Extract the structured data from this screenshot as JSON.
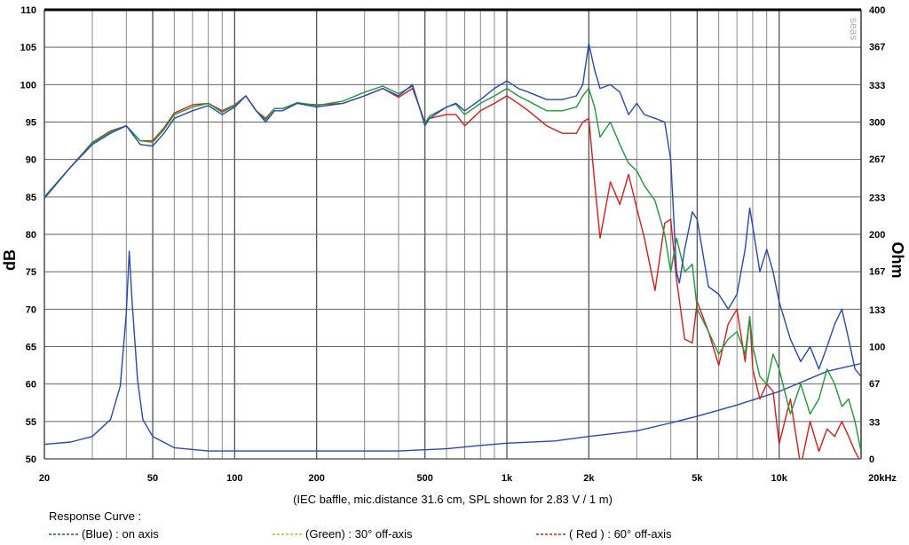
{
  "chart_data": {
    "type": "line",
    "x_scale": "log",
    "xlim": [
      20,
      20000
    ],
    "ylim": [
      50,
      110
    ],
    "y2lim": [
      0,
      400
    ],
    "grid": true,
    "ylabel": "dB",
    "y2label": "Ohm",
    "x_ticks": [
      20,
      50,
      100,
      200,
      500,
      1000,
      2000,
      5000,
      10000,
      20000
    ],
    "x_tick_labels": [
      "20",
      "50",
      "100",
      "200",
      "500",
      "1k",
      "2k",
      "5k",
      "10k",
      "20kHz"
    ],
    "y_ticks": [
      50,
      55,
      60,
      65,
      70,
      75,
      80,
      85,
      90,
      95,
      100,
      105,
      110
    ],
    "y_tick_labels": [
      "50",
      "55",
      "60",
      "65",
      "70",
      "75",
      "80",
      "85",
      "90",
      "95",
      "100",
      "105",
      "110"
    ],
    "y2_ticks": [
      0,
      33,
      67,
      100,
      133,
      167,
      200,
      233,
      267,
      300,
      333,
      367,
      400
    ],
    "y2_tick_labels": [
      "0",
      "33",
      "67",
      "100",
      "133",
      "167",
      "200",
      "233",
      "267",
      "300",
      "333",
      "367",
      "400"
    ],
    "caption": "(IEC baffle, mic.distance 31.6 cm, SPL shown for 2.83 V / 1 m)",
    "watermark": "seas",
    "legend_title": "Response Curve :",
    "legend": [
      {
        "label": "(Blue)  : on axis",
        "color": "#2a49b0"
      },
      {
        "label": "(Green) : 30° off-axis",
        "color": "#a8c830"
      },
      {
        "label": "( Red ) : 60° off-axis",
        "color": "#d02020"
      }
    ],
    "series": [
      {
        "axis": "left",
        "color": "#2a49b0",
        "points": [
          [
            20,
            84.8
          ],
          [
            25,
            89
          ],
          [
            30,
            92
          ],
          [
            35,
            93.5
          ],
          [
            40,
            94.5
          ],
          [
            45,
            92
          ],
          [
            50,
            91.8
          ],
          [
            55,
            93.5
          ],
          [
            60,
            95.5
          ],
          [
            70,
            96.5
          ],
          [
            80,
            97.2
          ],
          [
            90,
            96
          ],
          [
            100,
            97
          ],
          [
            110,
            98.5
          ],
          [
            120,
            96.5
          ],
          [
            130,
            95
          ],
          [
            140,
            96.5
          ],
          [
            150,
            96.5
          ],
          [
            170,
            97.5
          ],
          [
            200,
            97
          ],
          [
            250,
            97.5
          ],
          [
            300,
            98.5
          ],
          [
            350,
            99.5
          ],
          [
            400,
            98.5
          ],
          [
            450,
            100
          ],
          [
            500,
            94.5
          ],
          [
            520,
            95.5
          ],
          [
            600,
            97
          ],
          [
            650,
            97.5
          ],
          [
            700,
            96.5
          ],
          [
            800,
            98
          ],
          [
            900,
            99.5
          ],
          [
            1000,
            100.5
          ],
          [
            1100,
            99.5
          ],
          [
            1200,
            99
          ],
          [
            1400,
            98
          ],
          [
            1600,
            98
          ],
          [
            1800,
            98.5
          ],
          [
            1900,
            100
          ],
          [
            2000,
            105.5
          ],
          [
            2100,
            102
          ],
          [
            2200,
            99.5
          ],
          [
            2400,
            100
          ],
          [
            2600,
            99
          ],
          [
            2800,
            96
          ],
          [
            3000,
            97.5
          ],
          [
            3200,
            96
          ],
          [
            3500,
            95.5
          ],
          [
            3800,
            95
          ],
          [
            4000,
            90
          ],
          [
            4200,
            75
          ],
          [
            4300,
            73.5
          ],
          [
            4500,
            78
          ],
          [
            4800,
            83
          ],
          [
            5000,
            82
          ],
          [
            5500,
            73
          ],
          [
            6000,
            72
          ],
          [
            6500,
            70
          ],
          [
            7000,
            72
          ],
          [
            7500,
            78
          ],
          [
            7800,
            83.5
          ],
          [
            8000,
            81
          ],
          [
            8500,
            75
          ],
          [
            9000,
            78
          ],
          [
            9500,
            75
          ],
          [
            10000,
            71
          ],
          [
            11000,
            66
          ],
          [
            12000,
            63
          ],
          [
            13000,
            65
          ],
          [
            14000,
            62
          ],
          [
            15000,
            65
          ],
          [
            16000,
            68
          ],
          [
            17000,
            70
          ],
          [
            18000,
            66
          ],
          [
            19000,
            62
          ],
          [
            20000,
            61
          ]
        ]
      },
      {
        "axis": "left",
        "color": "#1e9a3a",
        "points": [
          [
            20,
            85
          ],
          [
            25,
            89
          ],
          [
            30,
            92.2
          ],
          [
            35,
            93.7
          ],
          [
            40,
            94.5
          ],
          [
            45,
            92.5
          ],
          [
            50,
            92.3
          ],
          [
            55,
            94
          ],
          [
            60,
            96
          ],
          [
            70,
            97
          ],
          [
            80,
            97.5
          ],
          [
            90,
            96.3
          ],
          [
            100,
            97.2
          ],
          [
            110,
            98.5
          ],
          [
            120,
            96.5
          ],
          [
            130,
            95.3
          ],
          [
            140,
            96.8
          ],
          [
            150,
            96.8
          ],
          [
            170,
            97.6
          ],
          [
            200,
            97.2
          ],
          [
            250,
            97.8
          ],
          [
            300,
            99
          ],
          [
            350,
            99.8
          ],
          [
            400,
            98.8
          ],
          [
            450,
            99.8
          ],
          [
            500,
            94.8
          ],
          [
            520,
            95.8
          ],
          [
            600,
            97
          ],
          [
            650,
            97.4
          ],
          [
            700,
            96
          ],
          [
            800,
            97.5
          ],
          [
            900,
            98.5
          ],
          [
            1000,
            99.5
          ],
          [
            1100,
            98.5
          ],
          [
            1200,
            97.8
          ],
          [
            1400,
            96.5
          ],
          [
            1600,
            96.5
          ],
          [
            1800,
            97
          ],
          [
            1900,
            98.5
          ],
          [
            2000,
            99.5
          ],
          [
            2100,
            97
          ],
          [
            2200,
            93
          ],
          [
            2400,
            95
          ],
          [
            2600,
            92
          ],
          [
            2800,
            89.5
          ],
          [
            3000,
            88.5
          ],
          [
            3200,
            86.5
          ],
          [
            3500,
            84.5
          ],
          [
            3800,
            80
          ],
          [
            4000,
            75
          ],
          [
            4200,
            79.5
          ],
          [
            4500,
            75
          ],
          [
            4800,
            76
          ],
          [
            5000,
            70
          ],
          [
            5500,
            67
          ],
          [
            6000,
            64
          ],
          [
            6500,
            66
          ],
          [
            7000,
            67
          ],
          [
            7500,
            64
          ],
          [
            7800,
            69
          ],
          [
            8000,
            65
          ],
          [
            8500,
            61
          ],
          [
            9000,
            60
          ],
          [
            9500,
            64
          ],
          [
            10000,
            62
          ],
          [
            11000,
            56
          ],
          [
            12000,
            60
          ],
          [
            13000,
            56
          ],
          [
            14000,
            58
          ],
          [
            15000,
            62
          ],
          [
            16000,
            60
          ],
          [
            17000,
            57
          ],
          [
            18000,
            58
          ],
          [
            19000,
            55
          ],
          [
            20000,
            51
          ]
        ]
      },
      {
        "axis": "left",
        "color": "#d81c1c",
        "points": [
          [
            20,
            85
          ],
          [
            25,
            89
          ],
          [
            30,
            92.3
          ],
          [
            35,
            93.8
          ],
          [
            40,
            94.5
          ],
          [
            45,
            92.5
          ],
          [
            50,
            92.5
          ],
          [
            55,
            94.2
          ],
          [
            60,
            96.2
          ],
          [
            70,
            97.3
          ],
          [
            80,
            97.5
          ],
          [
            90,
            96.5
          ],
          [
            100,
            97.3
          ],
          [
            110,
            98.5
          ],
          [
            120,
            96.5
          ],
          [
            130,
            95.5
          ],
          [
            140,
            96.8
          ],
          [
            150,
            96.8
          ],
          [
            170,
            97.5
          ],
          [
            200,
            97.3
          ],
          [
            250,
            97.5
          ],
          [
            300,
            98.5
          ],
          [
            350,
            99.5
          ],
          [
            400,
            98.3
          ],
          [
            450,
            99.5
          ],
          [
            500,
            95
          ],
          [
            520,
            95.5
          ],
          [
            600,
            96
          ],
          [
            650,
            96
          ],
          [
            700,
            94.5
          ],
          [
            800,
            96.5
          ],
          [
            900,
            97.5
          ],
          [
            1000,
            98.5
          ],
          [
            1100,
            97.5
          ],
          [
            1200,
            96.5
          ],
          [
            1400,
            94.5
          ],
          [
            1600,
            93.5
          ],
          [
            1800,
            93.5
          ],
          [
            1900,
            95
          ],
          [
            2000,
            95.5
          ],
          [
            2100,
            87
          ],
          [
            2200,
            79.5
          ],
          [
            2400,
            87
          ],
          [
            2600,
            84
          ],
          [
            2800,
            88
          ],
          [
            3000,
            83.5
          ],
          [
            3200,
            79.5
          ],
          [
            3500,
            72.5
          ],
          [
            3800,
            81.5
          ],
          [
            4000,
            82
          ],
          [
            4200,
            74
          ],
          [
            4500,
            66
          ],
          [
            4800,
            65.5
          ],
          [
            5000,
            71
          ],
          [
            5500,
            67
          ],
          [
            6000,
            62.5
          ],
          [
            6500,
            68
          ],
          [
            7000,
            70
          ],
          [
            7500,
            63
          ],
          [
            7800,
            69
          ],
          [
            8000,
            62
          ],
          [
            8500,
            58
          ],
          [
            9000,
            60
          ],
          [
            9500,
            59
          ],
          [
            10000,
            52
          ],
          [
            11000,
            58
          ],
          [
            12000,
            49
          ],
          [
            13000,
            55
          ],
          [
            14000,
            51
          ],
          [
            15000,
            54
          ],
          [
            16000,
            53
          ],
          [
            17000,
            55
          ],
          [
            18000,
            53
          ],
          [
            19000,
            51
          ],
          [
            20000,
            49.5
          ]
        ]
      },
      {
        "axis": "right",
        "color": "#2a49b0",
        "points": [
          [
            20,
            13
          ],
          [
            25,
            15
          ],
          [
            30,
            20
          ],
          [
            35,
            35
          ],
          [
            38,
            65
          ],
          [
            40,
            130
          ],
          [
            41,
            185
          ],
          [
            42,
            140
          ],
          [
            44,
            70
          ],
          [
            46,
            35
          ],
          [
            50,
            20
          ],
          [
            60,
            10
          ],
          [
            80,
            7
          ],
          [
            100,
            7
          ],
          [
            200,
            7
          ],
          [
            400,
            7
          ],
          [
            600,
            9
          ],
          [
            800,
            12
          ],
          [
            1000,
            14
          ],
          [
            1500,
            16
          ],
          [
            2000,
            20
          ],
          [
            3000,
            25
          ],
          [
            4000,
            32
          ],
          [
            5000,
            38
          ],
          [
            7000,
            48
          ],
          [
            10000,
            60
          ],
          [
            15000,
            78
          ],
          [
            20000,
            85
          ]
        ]
      }
    ]
  }
}
